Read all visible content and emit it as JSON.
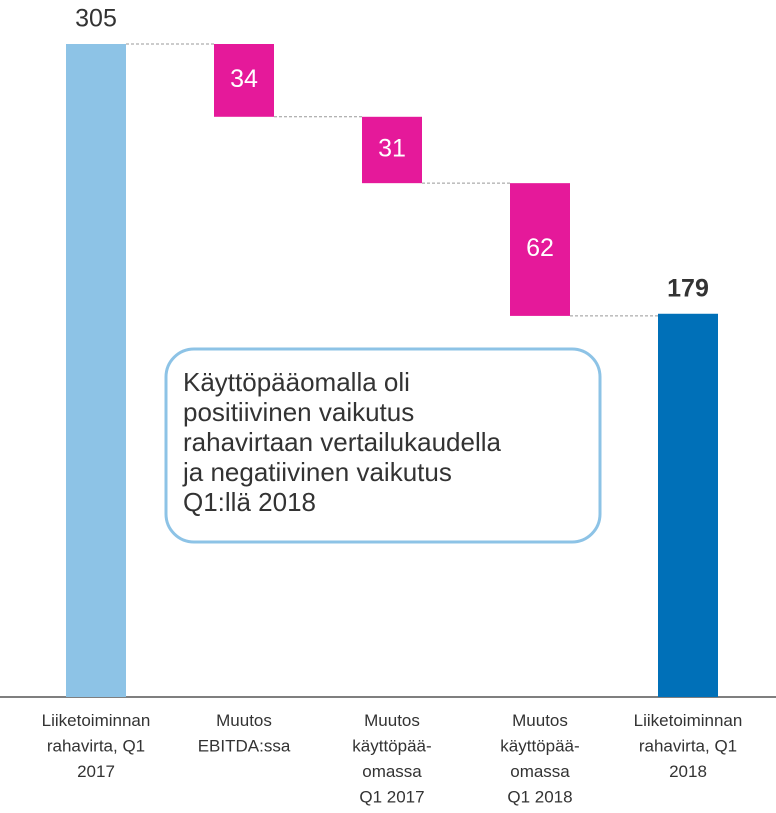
{
  "chart_data": {
    "type": "waterfall",
    "categories": [
      "Liiketoiminnan\nrahavirta, Q1\n2017",
      "Muutos\nEBITDA:ssa",
      "Muutos\nkäyttöpää-\nomassa\nQ1 2017",
      "Muutos\nkäyttöpää-\nomassa\nQ1 2018",
      "Liiketoiminnan\nrahavirta, Q1\n2018"
    ],
    "values": [
      305,
      -34,
      -31,
      -62,
      179
    ],
    "value_labels": [
      "305",
      "34",
      "31",
      "62",
      "179"
    ],
    "measure": [
      "absolute",
      "relative",
      "relative",
      "relative",
      "absolute"
    ],
    "colors": [
      "#8dc3e6",
      "#e5199a",
      "#e5199a",
      "#e5199a",
      "#0070b8"
    ],
    "annotation": [
      "Käyttöpääomalla oli",
      "positiivinen vaikutus",
      "rahavirtaan vertailukaudella",
      "ja negatiivinen vaikutus",
      "Q1:llä 2018"
    ]
  }
}
